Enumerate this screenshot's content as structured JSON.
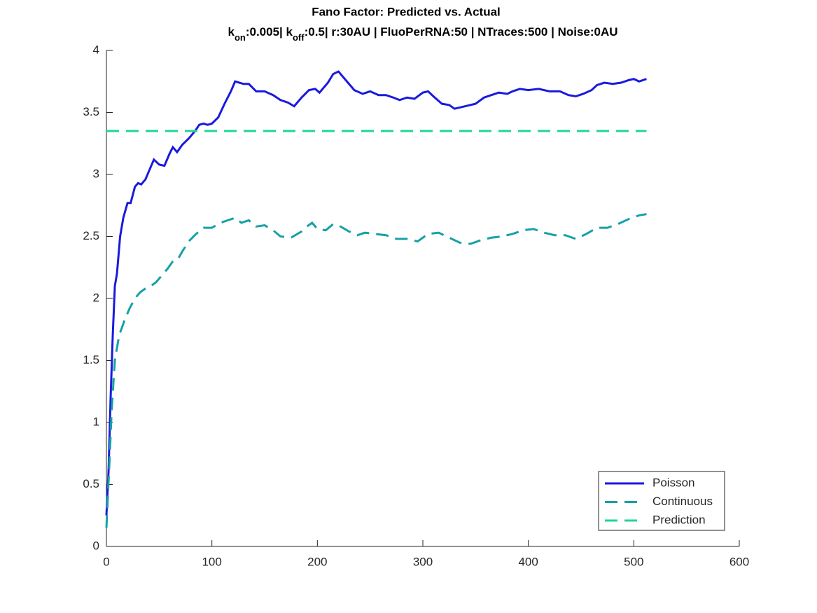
{
  "chart_data": {
    "type": "line",
    "title": "Fano Factor: Predicted vs. Actual",
    "subtitle_parts": [
      "k",
      "on",
      ":0.005| k",
      "off",
      ":0.5| r:30AU | FluoPerRNA:50 | NTraces:500 | Noise:0AU"
    ],
    "xlim": [
      0,
      600
    ],
    "xticks": [
      0,
      100,
      200,
      300,
      400,
      500,
      600
    ],
    "ylim": [
      0,
      4
    ],
    "yticks": [
      0,
      0.5,
      1,
      1.5,
      2,
      2.5,
      3,
      3.5,
      4
    ],
    "legend": "southeast",
    "series": [
      {
        "name": "Poisson",
        "color": "#1a1adf",
        "dash": "solid",
        "x": [
          0,
          2,
          4,
          6,
          8,
          10,
          13,
          16,
          20,
          23,
          27,
          30,
          33,
          37,
          40,
          45,
          50,
          55,
          60,
          63,
          67,
          72,
          78,
          84,
          88,
          92,
          96,
          100,
          106,
          112,
          118,
          122,
          130,
          135,
          142,
          150,
          158,
          165,
          172,
          178,
          185,
          192,
          198,
          202,
          210,
          215,
          220,
          227,
          235,
          243,
          250,
          258,
          265,
          272,
          278,
          285,
          292,
          300,
          305,
          310,
          318,
          325,
          330,
          340,
          350,
          358,
          365,
          372,
          380,
          385,
          392,
          400,
          410,
          420,
          430,
          438,
          445,
          452,
          460,
          465,
          472,
          480,
          488,
          495,
          500,
          505,
          512
        ],
        "values": [
          0.25,
          0.6,
          1.2,
          1.7,
          2.1,
          2.2,
          2.5,
          2.65,
          2.77,
          2.77,
          2.9,
          2.93,
          2.92,
          2.96,
          3.02,
          3.12,
          3.08,
          3.07,
          3.17,
          3.22,
          3.18,
          3.24,
          3.29,
          3.35,
          3.4,
          3.41,
          3.4,
          3.41,
          3.46,
          3.57,
          3.67,
          3.75,
          3.73,
          3.73,
          3.67,
          3.67,
          3.64,
          3.6,
          3.58,
          3.55,
          3.62,
          3.68,
          3.69,
          3.66,
          3.74,
          3.81,
          3.83,
          3.76,
          3.68,
          3.65,
          3.67,
          3.64,
          3.64,
          3.62,
          3.6,
          3.62,
          3.61,
          3.66,
          3.67,
          3.63,
          3.57,
          3.56,
          3.53,
          3.55,
          3.57,
          3.62,
          3.64,
          3.66,
          3.65,
          3.67,
          3.69,
          3.68,
          3.69,
          3.67,
          3.67,
          3.64,
          3.63,
          3.65,
          3.68,
          3.72,
          3.74,
          3.73,
          3.74,
          3.76,
          3.77,
          3.75,
          3.77
        ]
      },
      {
        "name": "Continuous",
        "color": "#17a0a8",
        "dash": "dashed",
        "x": [
          0,
          3,
          5,
          8,
          12,
          17,
          22,
          27,
          32,
          37,
          42,
          47,
          52,
          58,
          63,
          68,
          72,
          78,
          85,
          92,
          100,
          108,
          115,
          122,
          128,
          135,
          142,
          150,
          158,
          165,
          175,
          185,
          190,
          195,
          200,
          208,
          215,
          222,
          230,
          238,
          245,
          255,
          265,
          275,
          285,
          295,
          305,
          315,
          325,
          335,
          345,
          355,
          365,
          375,
          385,
          395,
          405,
          415,
          425,
          435,
          445,
          455,
          465,
          475,
          485,
          495,
          505,
          512
        ],
        "values": [
          0.15,
          0.7,
          1.1,
          1.5,
          1.7,
          1.82,
          1.92,
          2.0,
          2.05,
          2.08,
          2.1,
          2.13,
          2.18,
          2.24,
          2.3,
          2.32,
          2.38,
          2.46,
          2.52,
          2.57,
          2.57,
          2.61,
          2.63,
          2.65,
          2.61,
          2.63,
          2.58,
          2.59,
          2.55,
          2.5,
          2.49,
          2.54,
          2.58,
          2.61,
          2.56,
          2.55,
          2.6,
          2.58,
          2.54,
          2.51,
          2.53,
          2.52,
          2.51,
          2.48,
          2.48,
          2.46,
          2.52,
          2.53,
          2.49,
          2.45,
          2.44,
          2.47,
          2.49,
          2.5,
          2.52,
          2.55,
          2.56,
          2.53,
          2.51,
          2.51,
          2.48,
          2.52,
          2.57,
          2.57,
          2.6,
          2.64,
          2.67,
          2.68
        ]
      },
      {
        "name": "Prediction",
        "color": "#21d694",
        "dash": "dashed",
        "x": [
          0,
          512
        ],
        "values": [
          3.35,
          3.35
        ]
      }
    ]
  }
}
